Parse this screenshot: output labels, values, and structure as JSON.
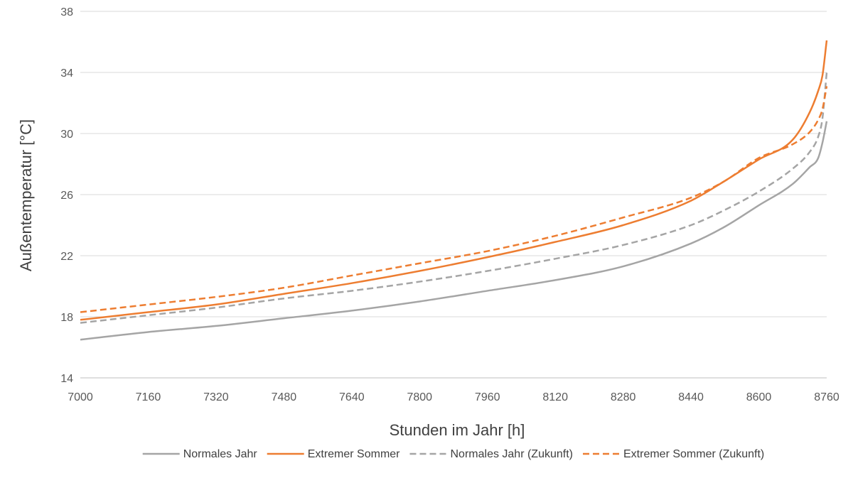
{
  "chart_data": {
    "type": "line",
    "title": "",
    "xlabel": "Stunden im Jahr [h]",
    "ylabel": "Außentemperatur [°C]",
    "xlim": [
      7000,
      8760
    ],
    "ylim": [
      14,
      38
    ],
    "xticks": [
      7000,
      7160,
      7320,
      7480,
      7640,
      7800,
      7960,
      8120,
      8280,
      8440,
      8600,
      8760
    ],
    "yticks": [
      14,
      18,
      22,
      26,
      30,
      34,
      38
    ],
    "grid": "horizontal",
    "legend_position": "bottom",
    "x": [
      7000,
      7160,
      7320,
      7480,
      7640,
      7800,
      7960,
      8120,
      8280,
      8440,
      8520,
      8600,
      8680,
      8720,
      8740,
      8750,
      8760
    ],
    "series": [
      {
        "name": "Normales Jahr",
        "color": "#a5a5a5",
        "dash": "solid",
        "values": [
          16.5,
          17.0,
          17.4,
          17.9,
          18.4,
          19.0,
          19.7,
          20.4,
          21.3,
          22.8,
          23.9,
          25.3,
          26.7,
          27.8,
          28.4,
          29.4,
          30.8
        ]
      },
      {
        "name": "Extremer Sommer",
        "color": "#ed7d31",
        "dash": "solid",
        "values": [
          17.8,
          18.3,
          18.8,
          19.5,
          20.2,
          21.0,
          21.9,
          22.9,
          24.0,
          25.6,
          26.9,
          28.3,
          29.6,
          31.4,
          32.8,
          33.8,
          36.1
        ]
      },
      {
        "name": "Normales Jahr (Zukunft)",
        "color": "#a5a5a5",
        "dash": "dashed",
        "values": [
          17.6,
          18.1,
          18.6,
          19.2,
          19.7,
          20.3,
          21.0,
          21.8,
          22.7,
          24.0,
          25.0,
          26.2,
          27.7,
          28.8,
          29.8,
          31.0,
          34.0
        ]
      },
      {
        "name": "Extremer Sommer (Zukunft)",
        "color": "#ed7d31",
        "dash": "dashed",
        "values": [
          18.3,
          18.8,
          19.3,
          19.9,
          20.7,
          21.5,
          22.3,
          23.3,
          24.5,
          25.8,
          26.9,
          28.4,
          29.3,
          30.1,
          30.9,
          31.6,
          33.1
        ]
      }
    ]
  }
}
